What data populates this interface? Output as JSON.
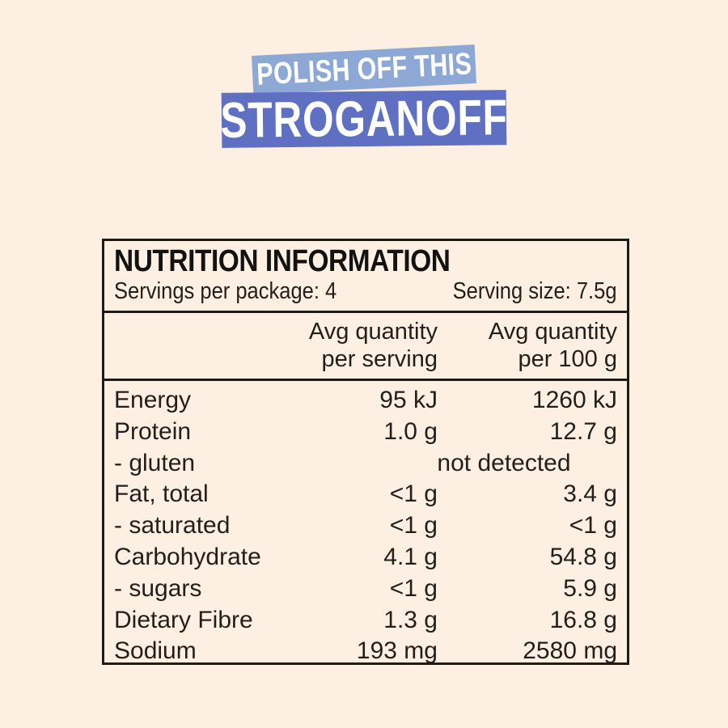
{
  "colors": {
    "page_background": "#fdf0e2",
    "badge_top_background": "#8ea8d6",
    "badge_main_background": "#5f70c2",
    "badge_text": "#ffffff",
    "panel_border": "#1f1c18",
    "text": "#221f1b"
  },
  "header": {
    "badge_top_label": "POLISH OFF THIS",
    "badge_main_label": "STROGANOFF"
  },
  "panel": {
    "title": "NUTRITION INFORMATION",
    "servings_per_package": "Servings per package: 4",
    "serving_size": "Serving size: 7.5g",
    "columns": {
      "col1_line1": "Avg quantity",
      "col1_line2": "per serving",
      "col2_line1": "Avg quantity",
      "col2_line2": "per 100 g"
    },
    "rows": [
      {
        "label": "Energy",
        "per_serving": "95 kJ",
        "per_100g": "1260 kJ"
      },
      {
        "label": "Protein",
        "per_serving": "1.0 g",
        "per_100g": "12.7 g"
      },
      {
        "label": "- gluten",
        "span_value": "not detected"
      },
      {
        "label": "Fat, total",
        "per_serving": "<1 g",
        "per_100g": "3.4 g"
      },
      {
        "label": "- saturated",
        "per_serving": "<1 g",
        "per_100g": "<1 g"
      },
      {
        "label": "Carbohydrate",
        "per_serving": "4.1 g",
        "per_100g": "54.8 g"
      },
      {
        "label": "- sugars",
        "per_serving": "<1 g",
        "per_100g": "5.9 g"
      },
      {
        "label": "Dietary Fibre",
        "per_serving": "1.3 g",
        "per_100g": "16.8 g"
      },
      {
        "label": "Sodium",
        "per_serving": "193 mg",
        "per_100g": "2580 mg"
      }
    ]
  }
}
